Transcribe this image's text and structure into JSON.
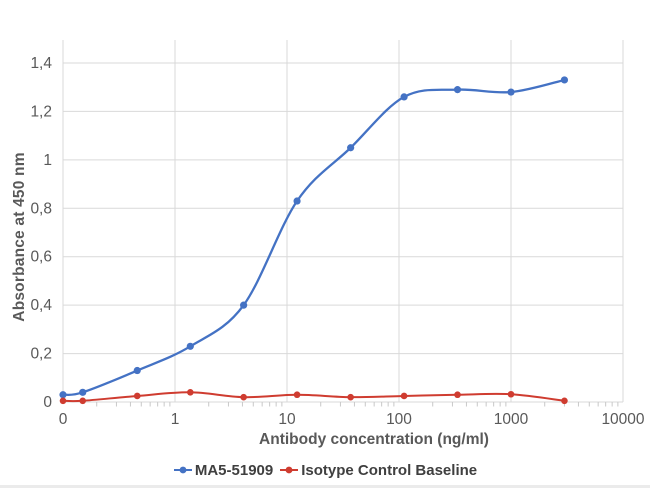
{
  "figure": {
    "y_axis_title": "Absorbance at 450 nm",
    "x_axis_title": "Antibody concentration (ng/ml)"
  },
  "legend": {
    "items": [
      {
        "label": "MA5-51909",
        "color": "#4472c4"
      },
      {
        "label": "Isotype Control Baseline",
        "color": "#cf3c30"
      }
    ]
  },
  "chart_data": {
    "type": "line",
    "title": "",
    "xlabel": "Antibody concentration (ng/ml)",
    "ylabel": "Absorbance at 450 nm",
    "x_scale": "log",
    "x_axis_note": "first point (0 ng/ml blank) plotted at axis origin of log scale",
    "x": [
      0,
      0.15,
      0.46,
      1.37,
      4.1,
      12.3,
      37,
      111,
      333,
      1000,
      3000
    ],
    "series": [
      {
        "name": "MA5-51909",
        "color": "#4472c4",
        "values": [
          0.03,
          0.04,
          0.13,
          0.23,
          0.4,
          0.83,
          1.05,
          1.26,
          1.29,
          1.28,
          1.33
        ]
      },
      {
        "name": "Isotype Control Baseline",
        "color": "#cf3c30",
        "values": [
          0.005,
          0.005,
          0.025,
          0.04,
          0.02,
          0.03,
          0.02,
          0.025,
          0.03,
          0.032,
          0.005
        ]
      }
    ],
    "x_tick_labels": [
      "0",
      "1",
      "10",
      "100",
      "1000",
      "10000"
    ],
    "x_tick_values": [
      0.1,
      1,
      10,
      100,
      1000,
      10000
    ],
    "y_tick_labels": [
      "0",
      "0,2",
      "0,4",
      "0,6",
      "0,8",
      "1",
      "1,2",
      "1,4"
    ],
    "y_tick_values": [
      0,
      0.2,
      0.4,
      0.6,
      0.8,
      1.0,
      1.2,
      1.4
    ],
    "xlim_log": [
      0.1,
      10000
    ],
    "ylim": [
      0,
      1.5
    ],
    "grid": true,
    "line_style": "smoothed with round markers",
    "legend_position": "bottom-center",
    "colors": {
      "grid": "#d9d9d9",
      "minor_tick": "#c8c8c8",
      "axis_text": "#595959",
      "legend_text": "#3f3f3f"
    }
  }
}
